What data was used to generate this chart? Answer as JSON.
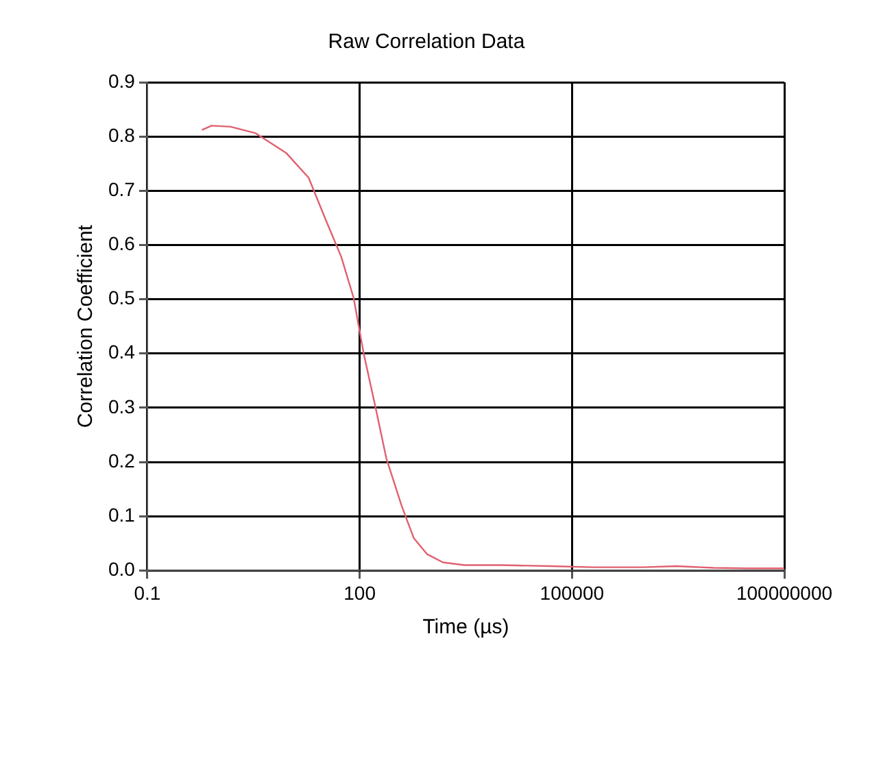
{
  "chart_data": {
    "type": "line",
    "title": "Raw Correlation Data",
    "xlabel": "Time (µs)",
    "ylabel": "Correlation Coefficient",
    "log": "x",
    "xlim": [
      0.1,
      100000000
    ],
    "xticks": [
      0.1,
      100,
      100000,
      100000000
    ],
    "ylim": [
      0,
      0.9
    ],
    "yticks": [
      {
        "value": 0,
        "label": "0.0"
      },
      0.1,
      0.2,
      0.3,
      0.4,
      0.5,
      0.6,
      0.7,
      0.8,
      0.9
    ],
    "grid": true,
    "legend": false,
    "marker": "none",
    "line_style": "solid",
    "series": [
      {
        "color": "#e06070",
        "x": [
          0.59,
          0.81,
          1.5,
          3.4,
          9.1,
          19,
          33,
          55,
          82,
          114,
          166,
          238,
          390,
          580,
          900,
          1500,
          3000,
          10000,
          50000,
          200000,
          1000000,
          3000000,
          10000000,
          30000000,
          100000000
        ],
        "values": [
          0.812,
          0.82,
          0.818,
          0.806,
          0.77,
          0.724,
          0.647,
          0.578,
          0.503,
          0.4,
          0.303,
          0.207,
          0.12,
          0.06,
          0.03,
          0.015,
          0.01,
          0.01,
          0.008,
          0.006,
          0.006,
          0.008,
          0.005,
          0.004,
          0.004
        ]
      }
    ]
  }
}
